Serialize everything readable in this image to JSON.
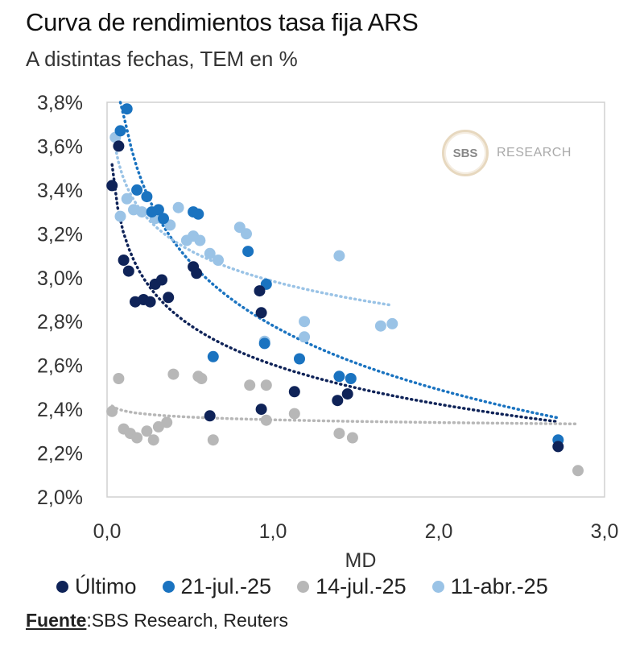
{
  "header": {
    "title": "Curva de rendimientos tasa fija ARS",
    "subtitle": "A distintas fechas, TEM en %"
  },
  "watermark": {
    "mark": "SBS",
    "text": "RESEARCH"
  },
  "source": {
    "label": "Fuente",
    "text": ":SBS Research, Reuters"
  },
  "chart_data": {
    "type": "scatter",
    "title": "Curva de rendimientos tasa fija ARS",
    "subtitle": "A distintas fechas, TEM en %",
    "xlabel": "MD",
    "ylabel": "",
    "xlim": [
      0,
      3
    ],
    "ylim": [
      2.0,
      3.8
    ],
    "xticks": [
      0,
      1,
      2,
      3
    ],
    "xtick_labels": [
      "0,0",
      "1,0",
      "2,0",
      "3,0"
    ],
    "yticks": [
      2.0,
      2.2,
      2.4,
      2.6,
      2.8,
      3.0,
      3.2,
      3.4,
      3.6,
      3.8
    ],
    "ytick_labels": [
      "2,0%",
      "2,2%",
      "2,4%",
      "2,6%",
      "2,8%",
      "3,0%",
      "3,2%",
      "3,4%",
      "3,6%",
      "3,8%"
    ],
    "grid": false,
    "legend_position": "bottom",
    "trendlines": "dotted logarithmic fit per series",
    "series": [
      {
        "name": "Último",
        "color": "#0f2358",
        "points": [
          [
            0.03,
            3.42
          ],
          [
            0.07,
            3.6
          ],
          [
            0.1,
            3.08
          ],
          [
            0.13,
            3.03
          ],
          [
            0.17,
            2.89
          ],
          [
            0.22,
            2.9
          ],
          [
            0.26,
            2.89
          ],
          [
            0.29,
            2.97
          ],
          [
            0.33,
            2.99
          ],
          [
            0.37,
            2.91
          ],
          [
            0.52,
            3.05
          ],
          [
            0.54,
            3.02
          ],
          [
            0.62,
            2.37
          ],
          [
            0.92,
            2.94
          ],
          [
            0.93,
            2.84
          ],
          [
            0.93,
            2.4
          ],
          [
            1.13,
            2.48
          ],
          [
            1.39,
            2.44
          ],
          [
            1.45,
            2.47
          ],
          [
            2.72,
            2.23
          ]
        ]
      },
      {
        "name": "21-jul.-25",
        "color": "#1a73c0",
        "points": [
          [
            0.08,
            3.67
          ],
          [
            0.12,
            3.77
          ],
          [
            0.18,
            3.4
          ],
          [
            0.24,
            3.37
          ],
          [
            0.27,
            3.3
          ],
          [
            0.31,
            3.31
          ],
          [
            0.34,
            3.27
          ],
          [
            0.52,
            3.3
          ],
          [
            0.55,
            3.29
          ],
          [
            0.64,
            2.64
          ],
          [
            0.85,
            3.12
          ],
          [
            0.96,
            2.97
          ],
          [
            0.95,
            2.7
          ],
          [
            1.16,
            2.63
          ],
          [
            1.4,
            2.55
          ],
          [
            1.47,
            2.54
          ],
          [
            2.72,
            2.26
          ]
        ]
      },
      {
        "name": "14-jul.-25",
        "color": "#b7b7b7",
        "points": [
          [
            0.03,
            2.39
          ],
          [
            0.07,
            2.54
          ],
          [
            0.1,
            2.31
          ],
          [
            0.14,
            2.29
          ],
          [
            0.18,
            2.27
          ],
          [
            0.24,
            2.3
          ],
          [
            0.28,
            2.26
          ],
          [
            0.31,
            2.32
          ],
          [
            0.36,
            2.34
          ],
          [
            0.4,
            2.56
          ],
          [
            0.55,
            2.55
          ],
          [
            0.57,
            2.54
          ],
          [
            0.64,
            2.26
          ],
          [
            0.86,
            2.51
          ],
          [
            0.96,
            2.51
          ],
          [
            0.96,
            2.35
          ],
          [
            1.13,
            2.38
          ],
          [
            1.4,
            2.29
          ],
          [
            1.48,
            2.27
          ],
          [
            2.84,
            2.12
          ]
        ]
      },
      {
        "name": "11-abr.-25",
        "color": "#9ac3e6",
        "points": [
          [
            0.05,
            3.64
          ],
          [
            0.08,
            3.28
          ],
          [
            0.12,
            3.36
          ],
          [
            0.16,
            3.31
          ],
          [
            0.21,
            3.3
          ],
          [
            0.29,
            3.27
          ],
          [
            0.33,
            3.27
          ],
          [
            0.38,
            3.24
          ],
          [
            0.43,
            3.32
          ],
          [
            0.48,
            3.17
          ],
          [
            0.52,
            3.19
          ],
          [
            0.56,
            3.17
          ],
          [
            0.62,
            3.11
          ],
          [
            0.67,
            3.08
          ],
          [
            0.8,
            3.23
          ],
          [
            0.84,
            3.2
          ],
          [
            0.95,
            2.71
          ],
          [
            1.19,
            2.8
          ],
          [
            1.19,
            2.73
          ],
          [
            1.4,
            3.1
          ],
          [
            1.65,
            2.78
          ],
          [
            1.72,
            2.79
          ]
        ]
      }
    ]
  }
}
